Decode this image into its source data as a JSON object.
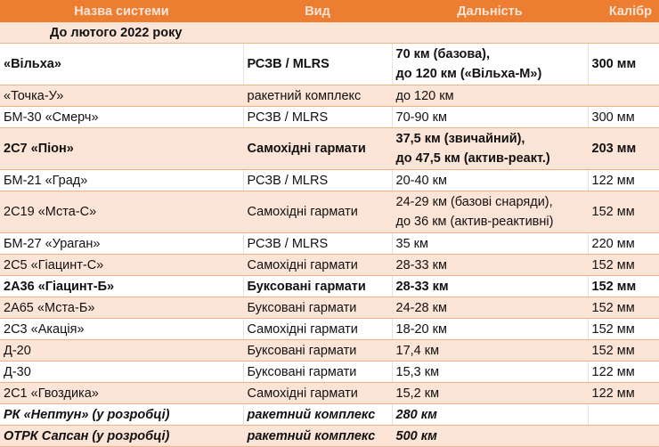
{
  "table": {
    "headers": [
      "Назва системи",
      "Вид",
      "Дальність",
      "Калібр"
    ],
    "section_label": "До лютого 2022 року",
    "colors": {
      "header_bg": "#ed7d31",
      "header_text": "#fbe5d6",
      "band_peach": "#fce4d6",
      "band_white": "#ffffff",
      "border": "#f4b183"
    },
    "rows": [
      {
        "name": "«Вільха»",
        "type": "РСЗВ / MLRS",
        "range": [
          "70 км (базова),",
          "до 120 км («Вільха-М»)"
        ],
        "caliber": "300 мм",
        "style": "bold",
        "band": "white"
      },
      {
        "name": "«Точка-У»",
        "type": "ракетний комплекс",
        "range": [
          "до 120 км"
        ],
        "caliber": "",
        "style": "normal",
        "band": "peach"
      },
      {
        "name": "БМ-30 «Смерч»",
        "type": "РСЗВ / MLRS",
        "range": [
          "70-90 км"
        ],
        "caliber": "300 мм",
        "style": "normal",
        "band": "white"
      },
      {
        "name": "2С7 «Піон»",
        "type": "Самохідні гармати",
        "range": [
          "37,5 км (звичайний),",
          "до 47,5 км (актив-реакт.)"
        ],
        "caliber": "203 мм",
        "style": "bold",
        "band": "peach"
      },
      {
        "name": "БМ-21 «Град»",
        "type": "РСЗВ / MLRS",
        "range": [
          "20-40 км"
        ],
        "caliber": "122 мм",
        "style": "normal",
        "band": "white"
      },
      {
        "name": "2С19 «Мста-С»",
        "type": "Самохідні гармати",
        "range": [
          "24-29 км (базові снаряди),",
          "до 36 км (актив-реактивні)"
        ],
        "caliber": "152 мм",
        "style": "normal",
        "band": "peach"
      },
      {
        "name": "БМ-27 «Ураган»",
        "type": "РСЗВ / MLRS",
        "range": [
          "35 км"
        ],
        "caliber": "220 мм",
        "style": "normal",
        "band": "white"
      },
      {
        "name": "2С5 «Гіацинт-С»",
        "type": "Самохідні гармати",
        "range": [
          "28-33 км"
        ],
        "caliber": "152 мм",
        "style": "normal",
        "band": "peach"
      },
      {
        "name": "2А36 «Гіацинт-Б»",
        "type": "Буксовані гармати",
        "range": [
          "28-33 км"
        ],
        "caliber": "152 мм",
        "style": "bold",
        "band": "white"
      },
      {
        "name": "2А65 «Мста-Б»",
        "type": "Буксовані гармати",
        "range": [
          "24-28 км"
        ],
        "caliber": "152 мм",
        "style": "normal",
        "band": "peach"
      },
      {
        "name": "2С3 «Акація»",
        "type": "Самохідні гармати",
        "range": [
          "18-20 км"
        ],
        "caliber": "152 мм",
        "style": "normal",
        "band": "white"
      },
      {
        "name": "Д-20",
        "type": "Буксовані гармати",
        "range": [
          "17,4 км"
        ],
        "caliber": "152 мм",
        "style": "normal",
        "band": "peach"
      },
      {
        "name": "Д-30",
        "type": "Буксовані гармати",
        "range": [
          "15,3 км"
        ],
        "caliber": "122 мм",
        "style": "normal",
        "band": "white"
      },
      {
        "name": "2С1 «Гвоздика»",
        "type": "Самохідні гармати",
        "range": [
          "15,2 км"
        ],
        "caliber": "122 мм",
        "style": "normal",
        "band": "peach"
      },
      {
        "name": "РК «Нептун» (у розробці)",
        "type": "ракетний комплекс",
        "range": [
          "280 км"
        ],
        "caliber": "",
        "style": "bold-italic",
        "band": "white"
      },
      {
        "name": "ОТРК Сапсан (у розробці)",
        "type": "ракетний комплекс",
        "range": [
          "500 км"
        ],
        "caliber": "",
        "style": "bold-italic",
        "band": "peach"
      }
    ]
  }
}
